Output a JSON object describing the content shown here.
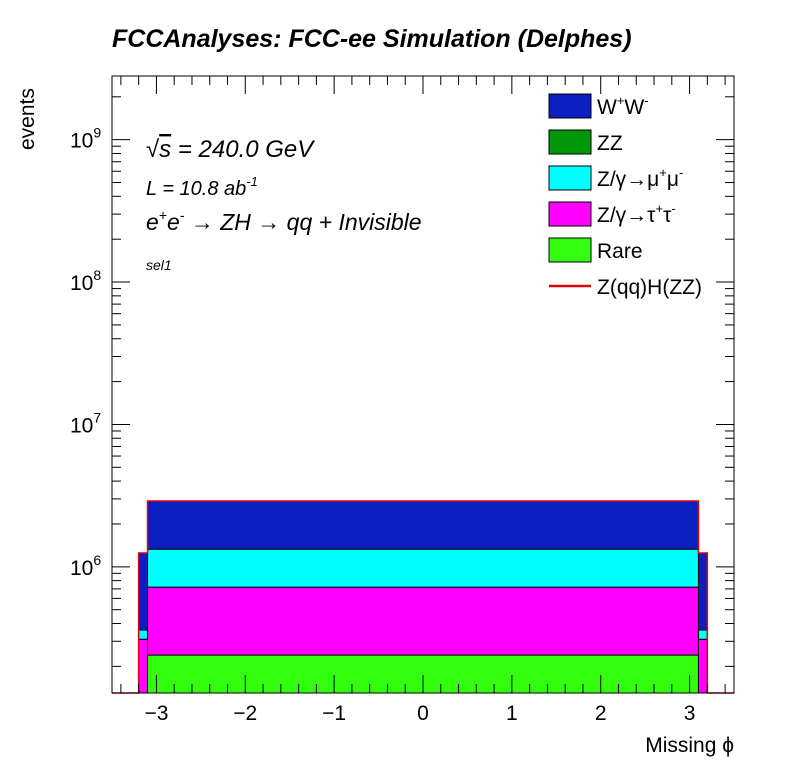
{
  "chart_data": {
    "type": "stacked-histogram",
    "title": "FCCAnalyses: FCC-ee Simulation (Delphes)",
    "xlabel": "Missing ϕ",
    "ylabel": "events",
    "xlim": [
      -3.5,
      3.5
    ],
    "ylim": [
      130000,
      2800000000
    ],
    "yscale": "log",
    "x_ticks": [
      {
        "value": -3,
        "label": "−3"
      },
      {
        "value": -2,
        "label": "−2"
      },
      {
        "value": -1,
        "label": "−1"
      },
      {
        "value": 0,
        "label": "0"
      },
      {
        "value": 1,
        "label": "1"
      },
      {
        "value": 2,
        "label": "2"
      },
      {
        "value": 3,
        "label": "3"
      }
    ],
    "y_ticks": [
      {
        "exp": 6,
        "label": "10",
        "sup": "6"
      },
      {
        "exp": 7,
        "label": "10",
        "sup": "7"
      },
      {
        "exp": 8,
        "label": "10",
        "sup": "8"
      },
      {
        "exp": 9,
        "label": "10",
        "sup": "9"
      }
    ],
    "grid": false,
    "legend_position": "top-right",
    "annotations": {
      "sqrt_s": {
        "root": "√",
        "s": "s",
        "rest": " = 240.0 GeV"
      },
      "lumi": {
        "text": "L = 10.8 ab",
        "sup": "-1"
      },
      "process": {
        "text": "e",
        "sup1": "+",
        "e2": "e",
        "sup2": "-",
        "rest": " → ZH → qq + Invisible"
      },
      "selection": "sel1"
    },
    "bins": [
      {
        "x0": -3.5,
        "x1": -3.2,
        "cumulative": [
          0,
          0,
          0,
          0,
          0
        ]
      },
      {
        "x0": -3.2,
        "x1": -3.1,
        "cumulative": [
          0,
          0,
          310000,
          360000,
          1250000
        ]
      },
      {
        "x0": -3.1,
        "x1": 3.1,
        "cumulative": [
          240000,
          240000,
          720000,
          1330000,
          2900000
        ]
      },
      {
        "x0": 3.1,
        "x1": 3.2,
        "cumulative": [
          0,
          0,
          310000,
          360000,
          1250000
        ]
      },
      {
        "x0": 3.2,
        "x1": 3.5,
        "cumulative": [
          0,
          0,
          0,
          0,
          0
        ]
      }
    ],
    "stack_order": [
      "Rare",
      "ZZ",
      "Z/γ→τ⁺τ⁻",
      "Z/γ→μ⁺μ⁻",
      "W⁺W⁻"
    ],
    "series": [
      {
        "name": "W⁺W⁻",
        "label": "W",
        "sup1": "+",
        "label2": "W",
        "sup2": "-",
        "color": "#0a1fbf",
        "kind": "fill"
      },
      {
        "name": "ZZ",
        "label": "ZZ",
        "color": "#00960a",
        "kind": "fill"
      },
      {
        "name": "Z/γ→μ⁺μ⁻",
        "label": "Z/γ→μ",
        "sup1": "+",
        "label2": "μ",
        "sup2": "-",
        "color": "#00ffff",
        "kind": "fill"
      },
      {
        "name": "Z/γ→τ⁺τ⁻",
        "label": "Z/γ→τ",
        "sup1": "+",
        "label2": "τ",
        "sup2": "-",
        "color": "#ff00ff",
        "kind": "fill"
      },
      {
        "name": "Rare",
        "label": "Rare",
        "color": "#33ff10",
        "kind": "fill"
      },
      {
        "name": "Z(qq)H(ZZ)",
        "label": "Z(qq)H(ZZ)",
        "color": "#e0000a",
        "kind": "line"
      }
    ]
  }
}
